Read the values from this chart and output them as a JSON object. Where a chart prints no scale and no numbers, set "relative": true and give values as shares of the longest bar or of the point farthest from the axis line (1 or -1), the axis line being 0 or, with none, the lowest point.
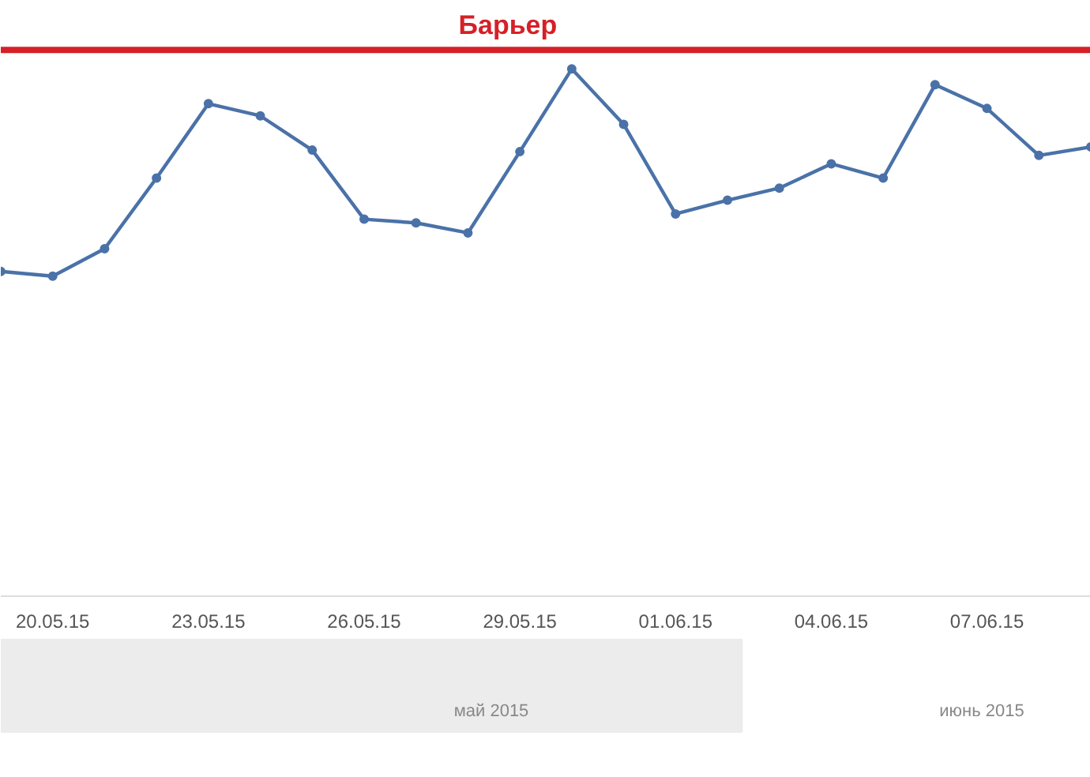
{
  "chart_data": {
    "type": "line",
    "relative": true,
    "marker": "circle",
    "x": [
      "2015-05-19",
      "2015-05-20",
      "2015-05-21",
      "2015-05-22",
      "2015-05-23",
      "2015-05-24",
      "2015-05-25",
      "2015-05-26",
      "2015-05-27",
      "2015-05-28",
      "2015-05-29",
      "2015-05-30",
      "2015-05-31",
      "2015-06-01",
      "2015-06-02",
      "2015-06-03",
      "2015-06-04",
      "2015-06-05",
      "2015-06-06",
      "2015-06-07",
      "2015-06-08",
      "2015-06-09"
    ],
    "series": [
      {
        "color": "#4a72a8",
        "values": [
          0.616,
          0.607,
          0.659,
          0.793,
          0.934,
          0.911,
          0.846,
          0.715,
          0.708,
          0.689,
          0.843,
          1,
          0.895,
          0.725,
          0.751,
          0.774,
          0.82,
          0.793,
          0.97,
          0.925,
          0.836,
          0.852
        ]
      }
    ],
    "xlim": [
      "2015-05-19",
      "2015-06-09"
    ],
    "xticks": [
      {
        "value": "2015-05-20",
        "label": "20.05.15"
      },
      {
        "value": "2015-05-23",
        "label": "23.05.15"
      },
      {
        "value": "2015-05-26",
        "label": "26.05.15"
      },
      {
        "value": "2015-05-29",
        "label": "29.05.15"
      },
      {
        "value": "2015-06-01",
        "label": "01.06.15"
      },
      {
        "value": "2015-06-04",
        "label": "04.06.15"
      },
      {
        "value": "2015-06-07",
        "label": "07.06.15"
      }
    ],
    "ref_lines": [
      {
        "axis": "y",
        "value": 1.036,
        "label": "Барьер",
        "color": "#d62028"
      }
    ],
    "annotations": [
      "май 2015",
      "июнь 2015"
    ]
  }
}
